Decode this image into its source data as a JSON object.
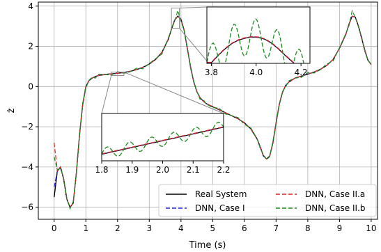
{
  "chart_data": {
    "type": "line",
    "xlabel": "Time (s)",
    "ylabel": "ż",
    "xlim": [
      -0.5,
      10.2
    ],
    "ylim": [
      -6.6,
      4.2
    ],
    "grid": true,
    "xticks": [
      0,
      1,
      2,
      3,
      4,
      5,
      6,
      7,
      8,
      9,
      10
    ],
    "yticks": [
      -6,
      -4,
      -2,
      0,
      2,
      4
    ],
    "ytick_labels": [
      "−6",
      "−4",
      "−2",
      "0",
      "2",
      "4"
    ],
    "x": [
      0,
      0.1,
      0.2,
      0.3,
      0.4,
      0.5,
      0.6,
      0.7,
      0.8,
      0.9,
      1.0,
      1.1,
      1.2,
      1.3,
      1.4,
      1.6,
      1.8,
      2.0,
      2.2,
      2.4,
      2.6,
      2.8,
      3.0,
      3.2,
      3.4,
      3.6,
      3.7,
      3.8,
      3.9,
      4.0,
      4.1,
      4.2,
      4.3,
      4.4,
      4.5,
      4.6,
      4.7,
      4.8,
      5.0,
      5.2,
      5.4,
      5.6,
      5.8,
      6.0,
      6.2,
      6.4,
      6.5,
      6.6,
      6.7,
      6.8,
      6.9,
      7.0,
      7.1,
      7.2,
      7.3,
      7.4,
      7.6,
      7.8,
      8.0,
      8.2,
      8.4,
      8.6,
      8.8,
      9.0,
      9.2,
      9.3,
      9.4,
      9.5,
      9.6,
      9.7,
      9.8,
      9.9,
      10.0
    ],
    "series": [
      {
        "name": "Real System",
        "color": "#000000",
        "dash": "solid",
        "values": [
          -5.5,
          -4.2,
          -4.0,
          -4.6,
          -5.6,
          -6.0,
          -5.8,
          -4.3,
          -2.4,
          -0.9,
          0.0,
          0.3,
          0.42,
          0.5,
          0.55,
          0.6,
          0.63,
          0.66,
          0.7,
          0.76,
          0.84,
          0.96,
          1.12,
          1.35,
          1.7,
          2.35,
          2.85,
          3.3,
          3.5,
          3.35,
          2.8,
          1.9,
          1.0,
          0.25,
          -0.25,
          -0.55,
          -0.72,
          -0.85,
          -1.0,
          -1.15,
          -1.3,
          -1.45,
          -1.6,
          -1.8,
          -2.1,
          -2.6,
          -3.0,
          -3.45,
          -3.6,
          -3.45,
          -2.8,
          -1.8,
          -0.9,
          -0.3,
          0.05,
          0.22,
          0.42,
          0.52,
          0.62,
          0.72,
          0.86,
          1.05,
          1.35,
          1.9,
          2.6,
          3.1,
          3.5,
          3.45,
          3.0,
          2.4,
          1.8,
          1.3,
          1.1
        ]
      },
      {
        "name": "DNN, Case I",
        "color": "#1f1fe0",
        "dash": "6,3",
        "values": [
          -5.0,
          -4.2,
          -4.0,
          -4.6,
          -5.6,
          -6.0,
          -5.8,
          -4.3,
          -2.4,
          -0.9,
          0.0,
          0.3,
          0.42,
          0.5,
          0.55,
          0.6,
          0.63,
          0.66,
          0.7,
          0.76,
          0.84,
          0.96,
          1.12,
          1.35,
          1.7,
          2.35,
          2.85,
          3.3,
          3.5,
          3.36,
          2.8,
          1.9,
          1.0,
          0.25,
          -0.25,
          -0.55,
          -0.72,
          -0.85,
          -1.0,
          -1.15,
          -1.3,
          -1.45,
          -1.6,
          -1.8,
          -2.1,
          -2.6,
          -3.0,
          -3.45,
          -3.6,
          -3.45,
          -2.8,
          -1.8,
          -0.9,
          -0.3,
          0.05,
          0.22,
          0.42,
          0.52,
          0.62,
          0.72,
          0.86,
          1.05,
          1.35,
          1.9,
          2.6,
          3.1,
          3.5,
          3.45,
          3.0,
          2.4,
          1.8,
          1.3,
          1.1
        ]
      },
      {
        "name": "DNN, Case II.a",
        "color": "#e02020",
        "dash": "6,3",
        "values": [
          -2.8,
          -4.2,
          -4.0,
          -4.6,
          -5.6,
          -6.0,
          -5.8,
          -4.3,
          -2.4,
          -0.9,
          0.0,
          0.3,
          0.42,
          0.5,
          0.55,
          0.6,
          0.63,
          0.66,
          0.7,
          0.76,
          0.84,
          0.96,
          1.12,
          1.35,
          1.7,
          2.35,
          2.85,
          3.3,
          3.5,
          3.34,
          2.8,
          1.9,
          1.0,
          0.25,
          -0.25,
          -0.55,
          -0.72,
          -0.85,
          -1.0,
          -1.15,
          -1.3,
          -1.45,
          -1.6,
          -1.8,
          -2.1,
          -2.6,
          -3.0,
          -3.45,
          -3.6,
          -3.45,
          -2.8,
          -1.8,
          -0.9,
          -0.3,
          0.05,
          0.22,
          0.42,
          0.52,
          0.62,
          0.72,
          0.86,
          1.05,
          1.35,
          1.9,
          2.6,
          3.1,
          3.5,
          3.45,
          3.0,
          2.4,
          1.8,
          1.3,
          1.1
        ]
      },
      {
        "name": "DNN, Case II.b",
        "color": "#1a8a1a",
        "dash": "6,3",
        "values": [
          -3.5,
          -4.2,
          -4.0,
          -4.6,
          -5.6,
          -6.0,
          -5.8,
          -4.3,
          -2.4,
          -0.9,
          0.0,
          0.3,
          0.42,
          0.5,
          0.55,
          0.6,
          0.63,
          0.66,
          0.7,
          0.76,
          0.84,
          0.96,
          1.12,
          1.35,
          1.7,
          2.35,
          2.85,
          3.3,
          3.7,
          3.3,
          2.8,
          1.9,
          1.0,
          0.25,
          -0.25,
          -0.55,
          -0.72,
          -0.85,
          -1.0,
          -1.15,
          -1.3,
          -1.45,
          -1.6,
          -1.8,
          -2.1,
          -2.6,
          -3.0,
          -3.45,
          -3.6,
          -3.45,
          -2.8,
          -1.8,
          -0.9,
          -0.3,
          0.05,
          0.22,
          0.42,
          0.52,
          0.62,
          0.72,
          0.86,
          1.05,
          1.35,
          1.9,
          2.6,
          3.1,
          3.7,
          3.45,
          3.0,
          2.4,
          1.8,
          1.3,
          1.1
        ]
      }
    ],
    "legend": {
      "placement": "lower-right",
      "entries": [
        "Real System",
        "DNN, Case II.a",
        "DNN, Case I",
        "DNN, Case II.b"
      ]
    },
    "insets": [
      {
        "xlim": [
          3.78,
          4.24
        ],
        "ylim": [
          2.7,
          4.1
        ],
        "xticks": [
          3.8,
          4.0,
          4.2
        ],
        "xtick_labels": [
          "3.8",
          "4.0",
          "4.2"
        ],
        "zoom_region": {
          "x": [
            3.7,
            3.95
          ],
          "y": [
            2.9,
            3.9
          ]
        },
        "curves": {
          "base_x": [
            3.8,
            3.83,
            3.86,
            3.89,
            3.92,
            3.95,
            3.98,
            4.01,
            4.04,
            4.07,
            4.1,
            4.13,
            4.16,
            4.19
          ],
          "base_y": [
            2.72,
            2.9,
            3.06,
            3.19,
            3.28,
            3.33,
            3.36,
            3.35,
            3.3,
            3.2,
            3.06,
            2.9,
            2.75,
            2.6
          ],
          "green_amp": 0.45,
          "green_freq": 9.5
        }
      },
      {
        "xlim": [
          1.8,
          2.2
        ],
        "ylim": [
          0.52,
          0.8
        ],
        "xticks": [
          1.8,
          1.9,
          2.0,
          2.1,
          2.2
        ],
        "xtick_labels": [
          "1.8",
          "1.9",
          "2.0",
          "2.1",
          "2.2"
        ],
        "zoom_region": {
          "x": [
            1.8,
            2.2
          ],
          "y": [
            0.55,
            0.72
          ]
        },
        "curves": {
          "base_x": [
            1.8,
            2.2
          ],
          "base_y": [
            0.56,
            0.72
          ],
          "green_amp": 0.035,
          "green_freq": 11
        }
      }
    ]
  }
}
